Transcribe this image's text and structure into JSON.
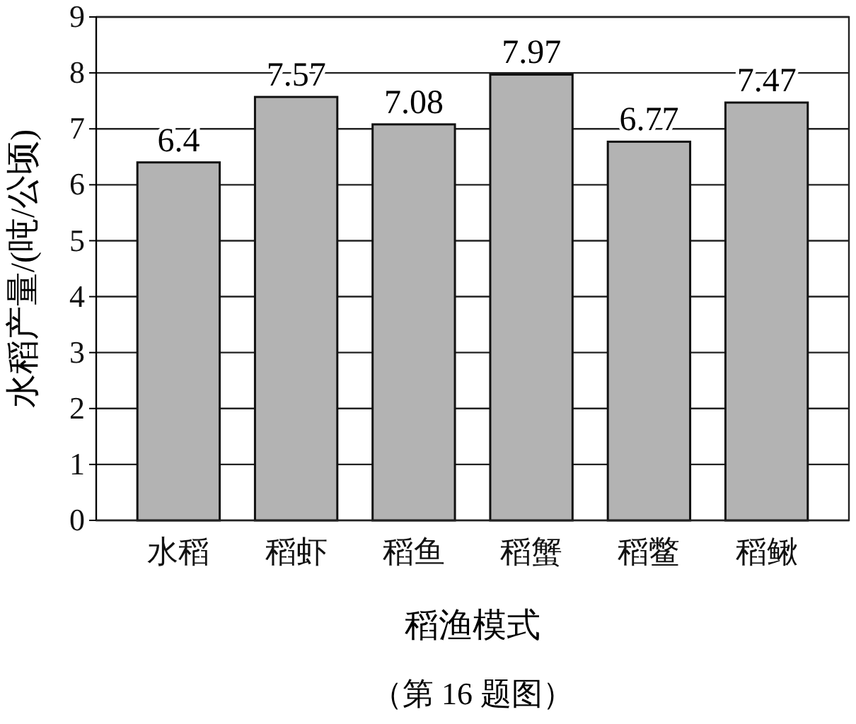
{
  "chart_data": {
    "type": "bar",
    "xlabel": "稻渔模式",
    "ylabel": "水稻产量/(吨/公顷)",
    "categories": [
      "水稻",
      "稻虾",
      "稻鱼",
      "稻蟹",
      "稻鳖",
      "稻鳅"
    ],
    "values": [
      6.4,
      7.57,
      7.08,
      7.97,
      6.77,
      7.47
    ],
    "color": "#b3b3b3",
    "ylim": [
      0,
      9
    ],
    "yticks": [
      0,
      1,
      2,
      3,
      4,
      5,
      6,
      7,
      8,
      9
    ],
    "grid": "y",
    "data_labels": true,
    "annotations": [
      "（第 16 题图）"
    ]
  }
}
